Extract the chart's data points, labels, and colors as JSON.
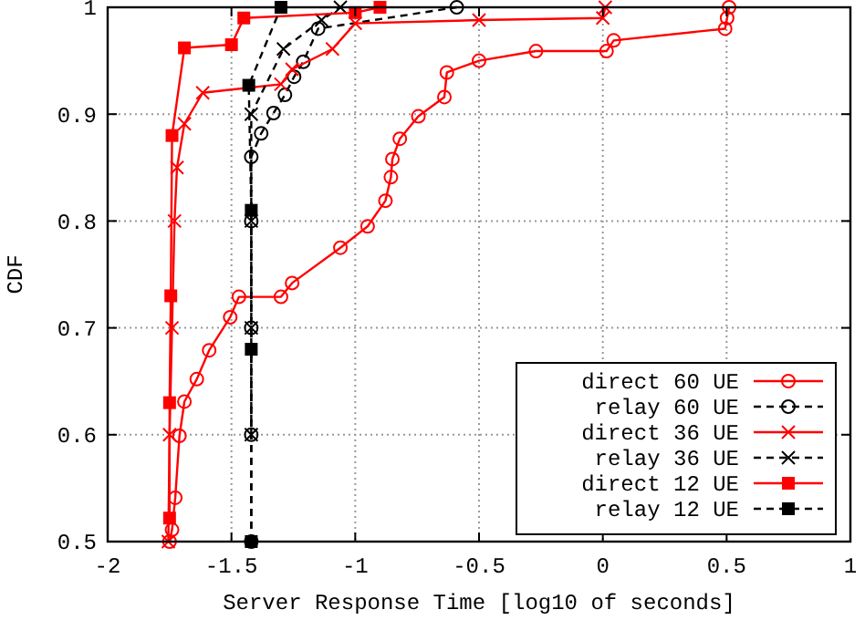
{
  "chart_data": {
    "type": "line",
    "xlabel": "Server Response Time [log10 of seconds]",
    "ylabel": "CDF",
    "xlim": [
      -2,
      1
    ],
    "ylim": [
      0.5,
      1
    ],
    "xticks": [
      -2,
      -1.5,
      -1,
      -0.5,
      0,
      0.5,
      1
    ],
    "yticks": [
      0.5,
      0.6,
      0.7,
      0.8,
      0.9,
      1
    ],
    "grid": true,
    "legend": "bottom right",
    "series": [
      {
        "name": "direct 60 UE",
        "color": "#ff0000",
        "marker": "circle",
        "line_style": "solid",
        "x": [
          -1.75,
          -1.74,
          -1.727,
          -1.71,
          -1.69,
          -1.64,
          -1.59,
          -1.505,
          -1.47,
          -1.3,
          -1.255,
          -1.06,
          -0.95,
          -0.878,
          -0.856,
          -0.85,
          -0.82,
          -0.745,
          -0.64,
          -0.63,
          -0.5,
          -0.27,
          0.015,
          0.044,
          0.494,
          0.502,
          0.51
        ],
        "values": [
          0.5,
          0.511,
          0.541,
          0.599,
          0.631,
          0.652,
          0.679,
          0.71,
          0.729,
          0.729,
          0.742,
          0.775,
          0.795,
          0.819,
          0.841,
          0.858,
          0.877,
          0.898,
          0.916,
          0.939,
          0.95,
          0.959,
          0.959,
          0.969,
          0.98,
          0.99,
          1
        ]
      },
      {
        "name": "relay 60 UE",
        "color": "#000000",
        "marker": "circle",
        "line_style": "dashed",
        "x": [
          -1.42,
          -1.42,
          -1.42,
          -1.42,
          -1.42,
          -1.38,
          -1.33,
          -1.284,
          -1.247,
          -1.21,
          -1.15,
          -0.59
        ],
        "values": [
          0.5,
          0.6,
          0.7,
          0.8,
          0.86,
          0.882,
          0.901,
          0.918,
          0.935,
          0.949,
          0.98,
          1
        ]
      },
      {
        "name": "direct 36 UE",
        "color": "#ff0000",
        "marker": "cross",
        "line_style": "solid",
        "x": [
          -1.755,
          -1.75,
          -1.74,
          -1.73,
          -1.72,
          -1.69,
          -1.616,
          -1.3,
          -1.255,
          -1.092,
          -1.0,
          -0.5,
          0.0,
          0.01
        ],
        "values": [
          0.5,
          0.6,
          0.7,
          0.8,
          0.85,
          0.891,
          0.92,
          0.928,
          0.942,
          0.961,
          0.985,
          0.988,
          0.99,
          1
        ]
      },
      {
        "name": "relay 36 UE",
        "color": "#000000",
        "marker": "cross",
        "line_style": "dashed",
        "x": [
          -1.42,
          -1.42,
          -1.42,
          -1.42,
          -1.29,
          -1.136,
          -1.06
        ],
        "values": [
          0.6,
          0.7,
          0.8,
          0.9,
          0.961,
          0.988,
          1
        ]
      },
      {
        "name": "direct 12 UE",
        "color": "#ff0000",
        "marker": "square",
        "line_style": "solid",
        "x": [
          -1.75,
          -1.75,
          -1.745,
          -1.74,
          -1.69,
          -1.5,
          -1.45,
          -1.0,
          -0.9
        ],
        "values": [
          0.522,
          0.63,
          0.73,
          0.88,
          0.962,
          0.965,
          0.99,
          0.995,
          1
        ]
      },
      {
        "name": "relay 12 UE",
        "color": "#000000",
        "marker": "square",
        "line_style": "dashed",
        "x": [
          -1.42,
          -1.42,
          -1.42,
          -1.43,
          -1.3
        ],
        "values": [
          0.5,
          0.68,
          0.81,
          0.927,
          1
        ]
      }
    ]
  }
}
